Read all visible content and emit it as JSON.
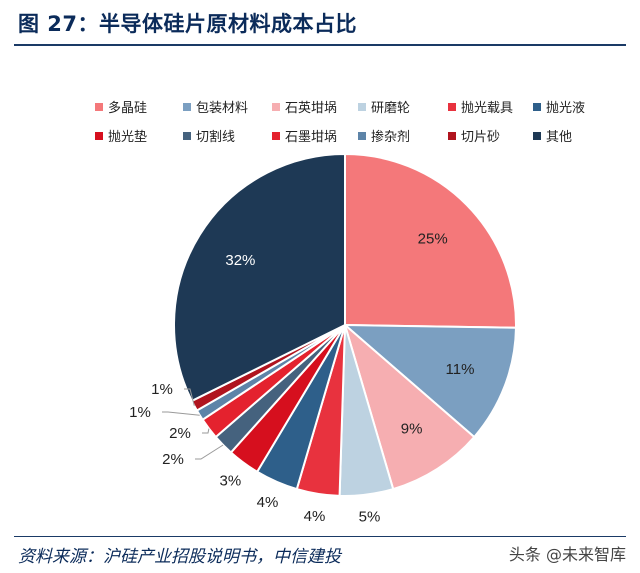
{
  "header": {
    "title": "图 27：半导体硅片原材料成本占比"
  },
  "footer": {
    "source": "资料来源：沪硅产业招股说明书，中信建投",
    "watermark": "头条 @未来智库"
  },
  "chart_data": {
    "type": "pie",
    "start": "12 o'clock",
    "direction": "clockwise",
    "legend_position": "top",
    "slices": [
      {
        "name": "多晶硅",
        "value": 25,
        "label": "25%",
        "color": "#f4787a",
        "label_color": "#222222"
      },
      {
        "name": "包装材料",
        "value": 11,
        "label": "11%",
        "color": "#7b9fc1",
        "label_color": "#222222"
      },
      {
        "name": "石英坩埚",
        "value": 9,
        "label": "9%",
        "color": "#f6aeb1",
        "label_color": "#222222"
      },
      {
        "name": "研磨轮",
        "value": 5,
        "label": "5%",
        "color": "#bdd2e1",
        "label_color": "#222222"
      },
      {
        "name": "抛光载具",
        "value": 4,
        "label": "4%",
        "color": "#e8323e",
        "label_color": "#222222"
      },
      {
        "name": "抛光液",
        "value": 4,
        "label": "4%",
        "color": "#2e5f8a",
        "label_color": "#ffffff"
      },
      {
        "name": "抛光垫",
        "value": 3,
        "label": "3%",
        "color": "#d60f1e",
        "label_color": "#222222"
      },
      {
        "name": "切割线",
        "value": 2,
        "label": "2%",
        "color": "#45627e",
        "label_color": "#222222"
      },
      {
        "name": "石墨坩埚",
        "value": 2,
        "label": "2%",
        "color": "#e4222e",
        "label_color": "#222222"
      },
      {
        "name": "掺杂剂",
        "value": 1,
        "label": "1%",
        "color": "#5d84a8",
        "label_color": "#222222"
      },
      {
        "name": "切片砂",
        "value": 1,
        "label": "1%",
        "color": "#b0141e",
        "label_color": "#222222"
      },
      {
        "name": "其他",
        "value": 32,
        "label": "32%",
        "color": "#1e3955",
        "label_color": "#ffffff"
      }
    ]
  }
}
